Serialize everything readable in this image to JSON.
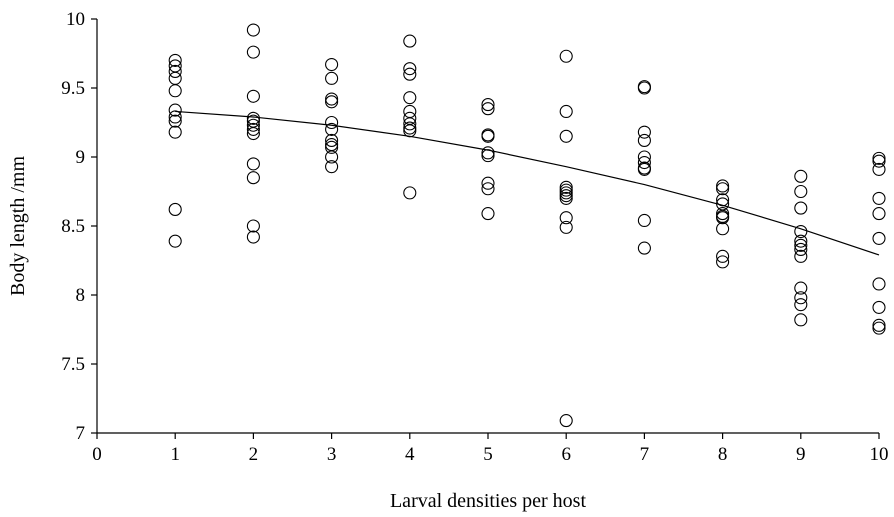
{
  "chart_data": {
    "type": "scatter",
    "title": "",
    "xlabel": "Larval densities per host",
    "ylabel": "Body length /mm",
    "xlim": [
      0,
      10
    ],
    "ylim": [
      7,
      10
    ],
    "x_ticks": [
      "0",
      "1",
      "2",
      "3",
      "4",
      "5",
      "6",
      "7",
      "8",
      "9",
      "10"
    ],
    "y_ticks": [
      "7",
      "7.5",
      "8",
      "8.5",
      "9",
      "9.5",
      "10"
    ],
    "grid": false,
    "legend": "none",
    "marker": "open-circle",
    "series": [
      {
        "points": [
          [
            1,
            9.7
          ],
          [
            1,
            9.66
          ],
          [
            1,
            9.62
          ],
          [
            1,
            9.57
          ],
          [
            1,
            9.48
          ],
          [
            1,
            9.34
          ],
          [
            1,
            9.29
          ],
          [
            1,
            9.26
          ],
          [
            1,
            9.18
          ],
          [
            1,
            8.62
          ],
          [
            1,
            8.39
          ],
          [
            2,
            9.92
          ],
          [
            2,
            9.76
          ],
          [
            2,
            9.44
          ],
          [
            2,
            9.28
          ],
          [
            2,
            9.26
          ],
          [
            2,
            9.23
          ],
          [
            2,
            9.2
          ],
          [
            2,
            9.17
          ],
          [
            2,
            8.95
          ],
          [
            2,
            8.85
          ],
          [
            2,
            8.5
          ],
          [
            2,
            8.42
          ],
          [
            3,
            9.67
          ],
          [
            3,
            9.57
          ],
          [
            3,
            9.42
          ],
          [
            3,
            9.4
          ],
          [
            3,
            9.25
          ],
          [
            3,
            9.2
          ],
          [
            3,
            9.12
          ],
          [
            3,
            9.09
          ],
          [
            3,
            9.07
          ],
          [
            3,
            9.0
          ],
          [
            3,
            8.93
          ],
          [
            4,
            9.84
          ],
          [
            4,
            9.64
          ],
          [
            4,
            9.6
          ],
          [
            4,
            9.43
          ],
          [
            4,
            9.33
          ],
          [
            4,
            9.28
          ],
          [
            4,
            9.24
          ],
          [
            4,
            9.21
          ],
          [
            4,
            9.19
          ],
          [
            4,
            8.74
          ],
          [
            5,
            9.38
          ],
          [
            5,
            9.35
          ],
          [
            5,
            9.16
          ],
          [
            5,
            9.15
          ],
          [
            5,
            9.03
          ],
          [
            5,
            9.01
          ],
          [
            5,
            8.81
          ],
          [
            5,
            8.77
          ],
          [
            5,
            8.59
          ],
          [
            6,
            9.73
          ],
          [
            6,
            9.33
          ],
          [
            6,
            9.15
          ],
          [
            6,
            8.78
          ],
          [
            6,
            8.76
          ],
          [
            6,
            8.74
          ],
          [
            6,
            8.72
          ],
          [
            6,
            8.7
          ],
          [
            6,
            8.56
          ],
          [
            6,
            8.49
          ],
          [
            6,
            7.09
          ],
          [
            7,
            9.51
          ],
          [
            7,
            9.5
          ],
          [
            7,
            9.18
          ],
          [
            7,
            9.12
          ],
          [
            7,
            9.0
          ],
          [
            7,
            8.96
          ],
          [
            7,
            8.92
          ],
          [
            7,
            8.91
          ],
          [
            7,
            8.54
          ],
          [
            7,
            8.34
          ],
          [
            8,
            8.79
          ],
          [
            8,
            8.77
          ],
          [
            8,
            8.69
          ],
          [
            8,
            8.66
          ],
          [
            8,
            8.59
          ],
          [
            8,
            8.57
          ],
          [
            8,
            8.56
          ],
          [
            8,
            8.48
          ],
          [
            8,
            8.28
          ],
          [
            8,
            8.24
          ],
          [
            9,
            8.86
          ],
          [
            9,
            8.75
          ],
          [
            9,
            8.63
          ],
          [
            9,
            8.46
          ],
          [
            9,
            8.39
          ],
          [
            9,
            8.36
          ],
          [
            9,
            8.33
          ],
          [
            9,
            8.28
          ],
          [
            9,
            8.05
          ],
          [
            9,
            7.98
          ],
          [
            9,
            7.93
          ],
          [
            9,
            7.82
          ],
          [
            10,
            8.99
          ],
          [
            10,
            8.97
          ],
          [
            10,
            8.91
          ],
          [
            10,
            8.7
          ],
          [
            10,
            8.59
          ],
          [
            10,
            8.41
          ],
          [
            10,
            8.08
          ],
          [
            10,
            7.91
          ],
          [
            10,
            7.78
          ],
          [
            10,
            7.76
          ]
        ]
      }
    ],
    "trendline": {
      "type": "polynomial-2",
      "x": [
        1,
        2,
        3,
        4,
        5,
        6,
        7,
        8,
        9,
        10
      ],
      "y": [
        9.33,
        9.29,
        9.23,
        9.15,
        9.05,
        8.93,
        8.8,
        8.65,
        8.48,
        8.29
      ]
    }
  }
}
